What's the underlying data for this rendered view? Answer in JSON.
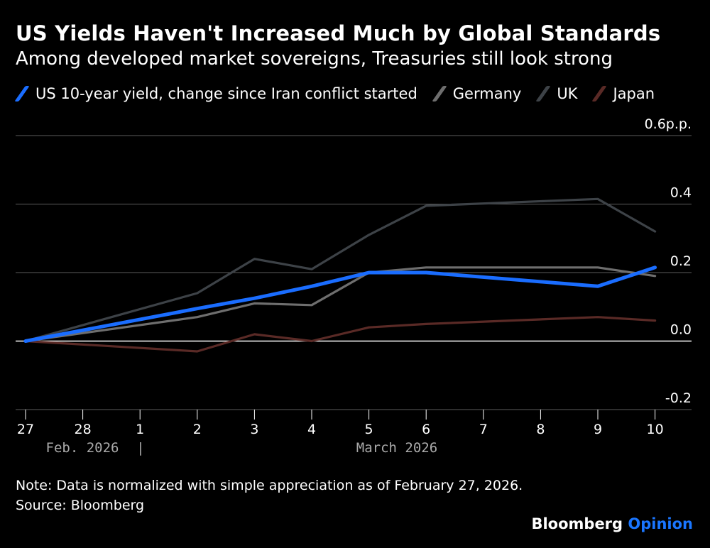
{
  "header": {
    "title": "US Yields Haven't Increased Much by Global Standards",
    "subtitle": "Among developed market sovereigns, Treasuries still look strong"
  },
  "footer": {
    "note": "Note: Data is normalized with simple appreciation as of February 27, 2026.",
    "source": "Source: Bloomberg",
    "brand_primary": "Bloomberg",
    "brand_secondary": "Opinion"
  },
  "chart_data": {
    "type": "line",
    "title": "US Yields Haven't Increased Much by Global Standards",
    "subtitle": "Among developed market sovereigns, Treasuries still look strong",
    "x": [
      "27",
      "28",
      "1",
      "2",
      "3",
      "4",
      "5",
      "6",
      "7",
      "8",
      "9",
      "10"
    ],
    "period_labels": [
      "Feb. 2026",
      "|",
      "March 2026"
    ],
    "y_ticks": [
      {
        "value": 0.6,
        "label": "0.6p.p."
      },
      {
        "value": 0.4,
        "label": "0.4"
      },
      {
        "value": 0.2,
        "label": "0.2"
      },
      {
        "value": 0.0,
        "label": "0.0"
      },
      {
        "value": -0.2,
        "label": "-0.2"
      }
    ],
    "ylim": [
      -0.2,
      0.6
    ],
    "series": [
      {
        "name": "UK",
        "color": "#3d4247",
        "values": [
          0.0,
          null,
          null,
          0.14,
          0.24,
          0.21,
          0.31,
          0.395,
          null,
          null,
          0.415,
          0.32
        ]
      },
      {
        "name": "Germany",
        "color": "#6e6e6e",
        "values": [
          0.0,
          null,
          null,
          0.07,
          0.11,
          0.105,
          0.2,
          0.215,
          null,
          null,
          0.215,
          0.19
        ]
      },
      {
        "name": "Japan",
        "color": "#5a2a26",
        "values": [
          0.0,
          null,
          null,
          -0.03,
          0.02,
          0.0,
          0.04,
          0.05,
          null,
          null,
          0.07,
          0.06
        ]
      },
      {
        "name": "US 10-year yield, change since Iran conflict started",
        "color": "#1a6dff",
        "values": [
          0.0,
          null,
          null,
          0.095,
          0.125,
          0.16,
          0.2,
          0.2,
          null,
          null,
          0.16,
          0.215
        ]
      }
    ],
    "legend": [
      {
        "label": "US 10-year yield, change since Iran conflict started",
        "color": "#1a6dff"
      },
      {
        "label": "Germany",
        "color": "#6e6e6e"
      },
      {
        "label": "UK",
        "color": "#3d4247"
      },
      {
        "label": "Japan",
        "color": "#5a2a26"
      }
    ]
  }
}
